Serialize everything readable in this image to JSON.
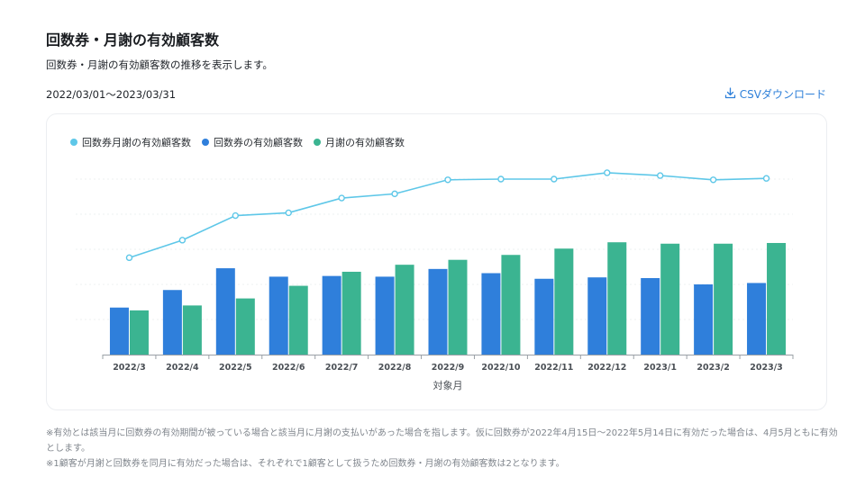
{
  "header": {
    "title": "回数券・月謝の有効顧客数",
    "description": "回数券・月謝の有効顧客数の推移を表示します。",
    "date_range": "2022/03/01〜2023/03/31",
    "csv_label": "CSVダウンロード"
  },
  "colors": {
    "combined": "#5ec7e8",
    "tickets": "#2f7fdb",
    "monthly": "#3bb491",
    "axis": "#9aa0a6",
    "grid": "#eef0f2"
  },
  "chart_data": {
    "type": "bar",
    "title": "",
    "xlabel": "対象月",
    "ylabel": "",
    "ylim": [
      0,
      300
    ],
    "categories": [
      "2022/3",
      "2022/4",
      "2022/5",
      "2022/6",
      "2022/7",
      "2022/8",
      "2022/9",
      "2022/10",
      "2022/11",
      "2022/12",
      "2023/1",
      "2023/2",
      "2023/3"
    ],
    "series": [
      {
        "name": "回数券月謝の有効顧客数",
        "type": "line",
        "values": [
          138,
          163,
          198,
          202,
          223,
          229,
          249,
          250,
          250,
          259,
          255,
          249,
          251
        ]
      },
      {
        "name": "回数券の有効顧客数",
        "type": "bar",
        "values": [
          67,
          92,
          123,
          111,
          112,
          111,
          122,
          116,
          108,
          110,
          109,
          100,
          102
        ]
      },
      {
        "name": "月謝の有効顧客数",
        "type": "bar",
        "values": [
          63,
          70,
          80,
          98,
          118,
          128,
          135,
          142,
          151,
          160,
          158,
          158,
          159
        ]
      }
    ],
    "grid": true,
    "legend": "top-left"
  },
  "notes": [
    "※有効とは該当月に回数券の有効期間が被っている場合と該当月に月謝の支払いがあった場合を指します。仮に回数券が2022年4月15日〜2022年5月14日に有効だった場合は、4月5月ともに有効とします。",
    "※1顧客が月謝と回数券を同月に有効だった場合は、それぞれで1顧客として扱うため回数券・月謝の有効顧客数は2となります。"
  ]
}
